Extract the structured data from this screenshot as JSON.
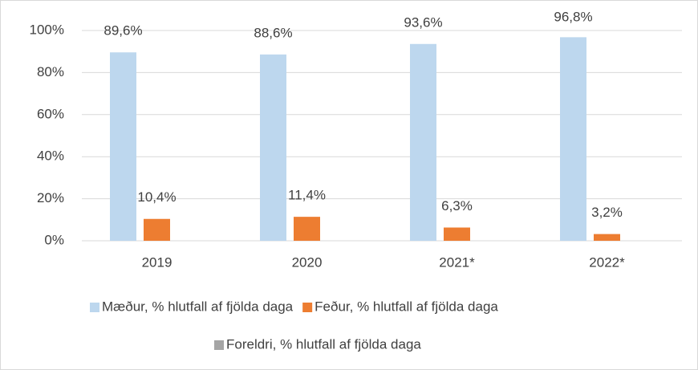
{
  "chart_data": {
    "type": "bar",
    "categories": [
      "2019",
      "2020",
      "2021*",
      "2022*"
    ],
    "series": [
      {
        "name": "Mæður, % hlutfall af fjölda daga",
        "color": "#bdd7ee",
        "values": [
          89.6,
          88.6,
          93.6,
          96.8
        ],
        "value_labels": [
          "89,6%",
          "88,6%",
          "93,6%",
          "96,8%"
        ]
      },
      {
        "name": "Feður, % hlutfall af fjölda daga",
        "color": "#ed7d31",
        "values": [
          10.4,
          11.4,
          6.3,
          3.2
        ],
        "value_labels": [
          "10,4%",
          "11,4%",
          "6,3%",
          "3,2%"
        ]
      },
      {
        "name": "Foreldri, % hlutfall af fjölda daga",
        "color": "#a5a5a5",
        "values": [
          0,
          0,
          0,
          0
        ]
      }
    ],
    "ylim": [
      0,
      100
    ],
    "yticks": [
      {
        "value": 0,
        "label": "0%"
      },
      {
        "value": 20,
        "label": "20%"
      },
      {
        "value": 40,
        "label": "40%"
      },
      {
        "value": 60,
        "label": "60%"
      },
      {
        "value": 80,
        "label": "80%"
      },
      {
        "value": 100,
        "label": "100%"
      }
    ],
    "grid": true
  }
}
